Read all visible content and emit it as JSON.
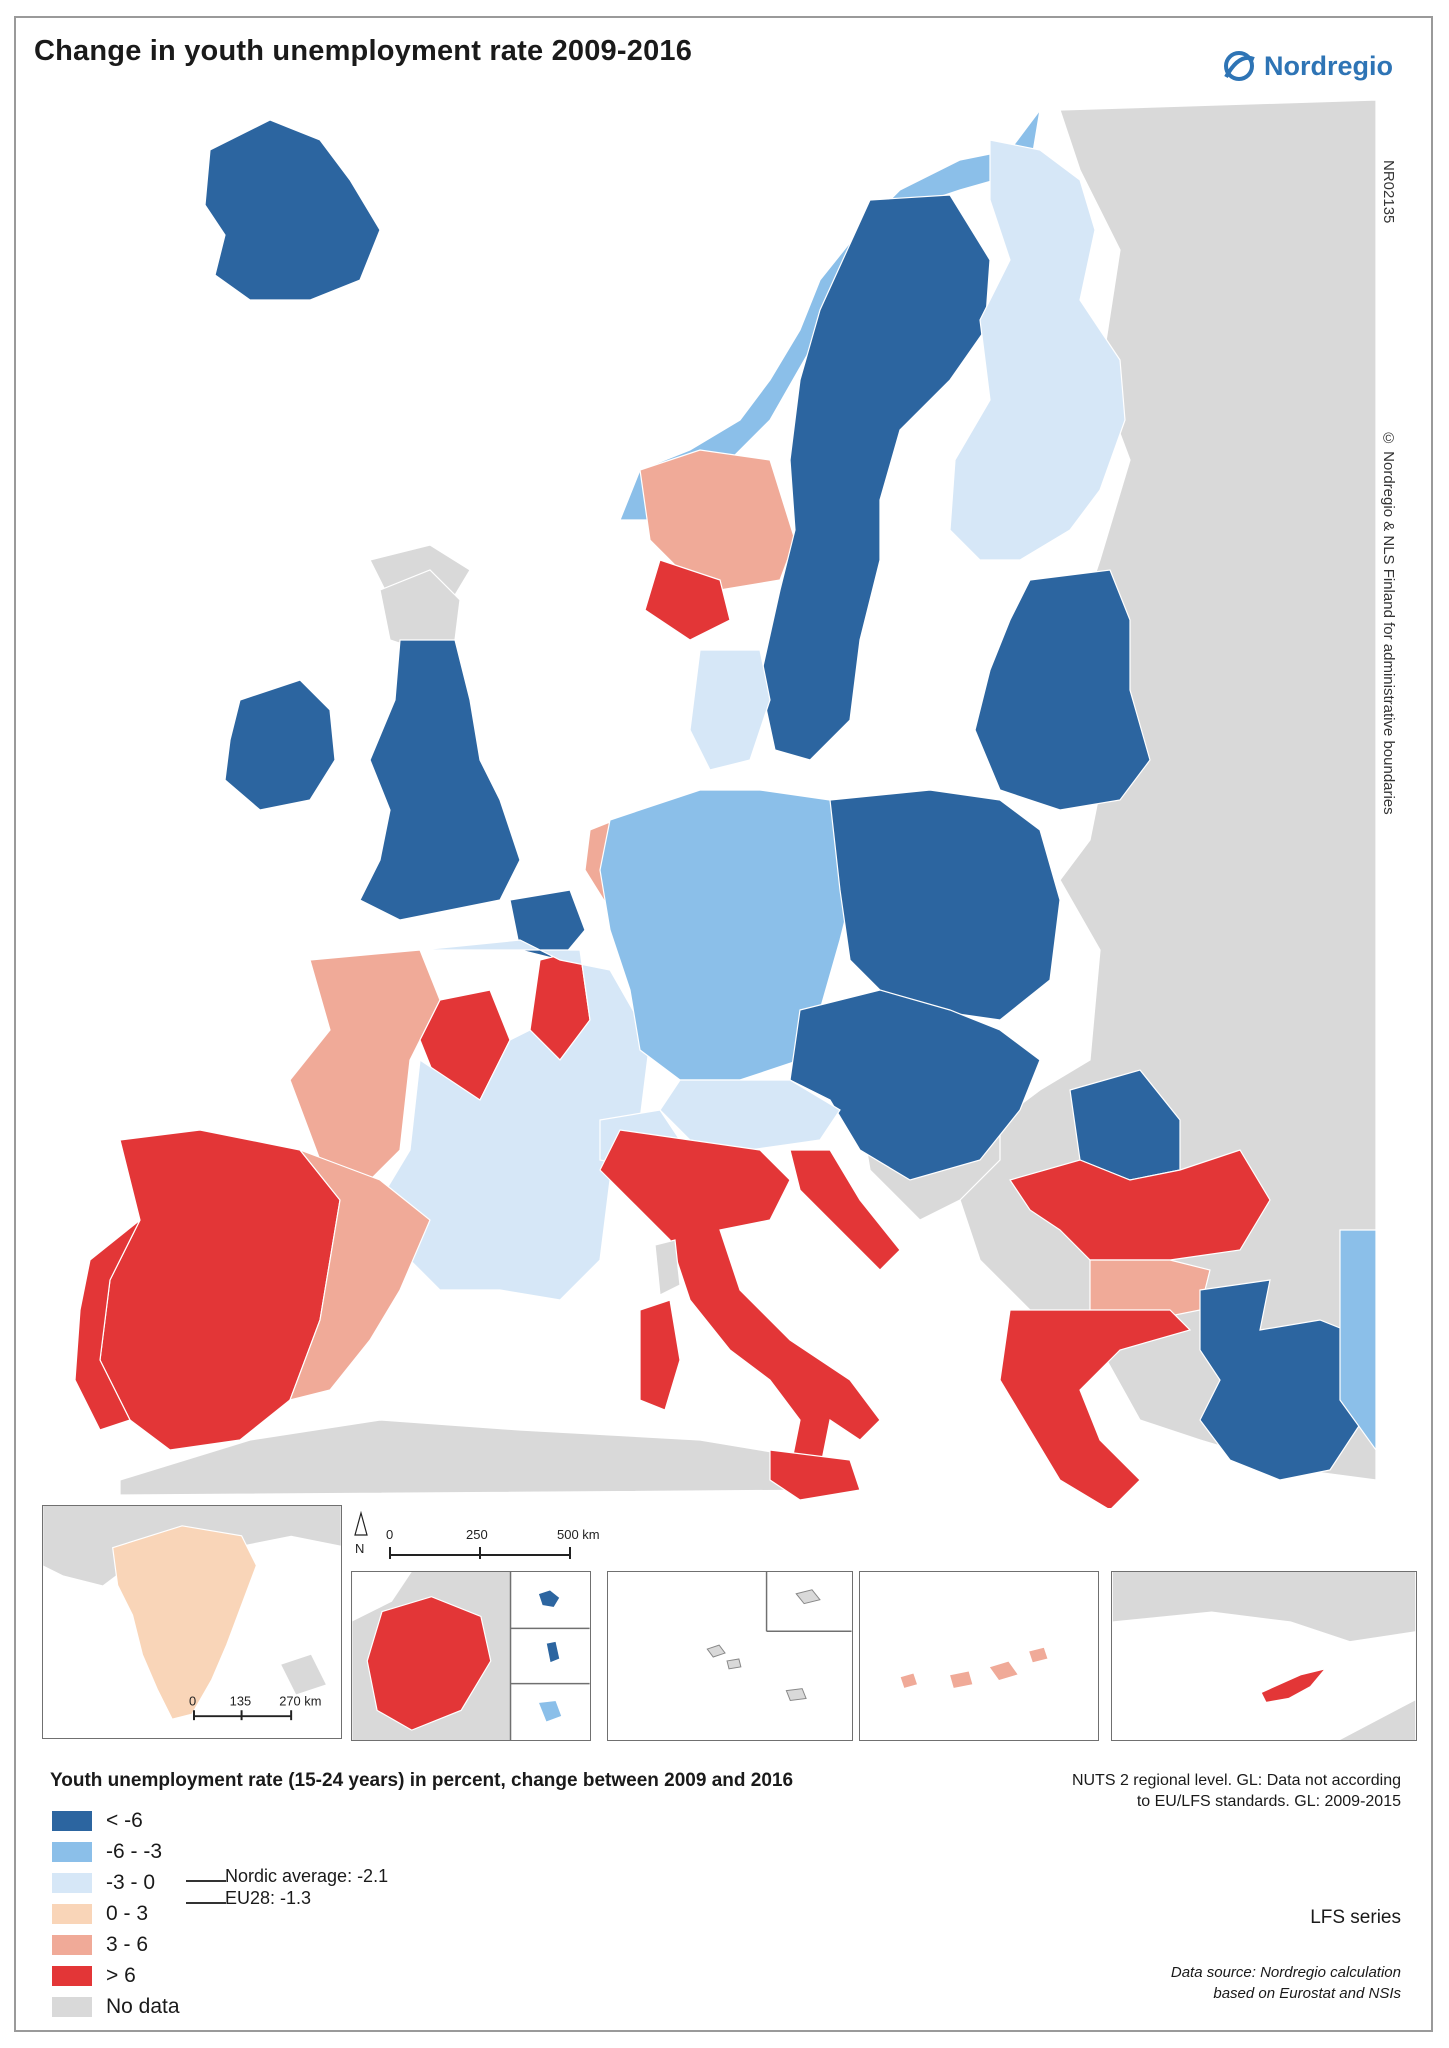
{
  "title": "Change in youth unemployment rate 2009-2016",
  "logo": {
    "name": "Nordregio",
    "icon": "nordregio-logo-icon",
    "color": "#2e74b5"
  },
  "map_code": "NR02135",
  "copyright": "© Nordregio & NLS Finland for administrative boundaries",
  "legend": {
    "heading": "Youth unemployment rate (15-24 years) in percent, change between 2009 and 2016",
    "classes": [
      {
        "label": "< -6",
        "color": "#2c65a0"
      },
      {
        "label": "-6 - -3",
        "color": "#8bbfe9"
      },
      {
        "label": "-3 - 0",
        "color": "#d6e7f7"
      },
      {
        "label": "0 - 3",
        "color": "#f9d5b8"
      },
      {
        "label": "3 - 6",
        "color": "#f0aa98"
      },
      {
        "label": "> 6",
        "color": "#e33637"
      },
      {
        "label": "No data",
        "color": "#d9d9d9"
      }
    ],
    "averages": [
      {
        "label": "Nordic average: -2.1",
        "class_index": 2
      },
      {
        "label": "EU28: -1.3",
        "class_index": 2
      }
    ]
  },
  "notes": {
    "nuts": [
      "NUTS 2 regional level. GL: Data not according",
      "to EU/LFS standards. GL: 2009-2015"
    ],
    "series": "LFS series",
    "source": [
      "Data source: Nordregio calculation",
      "based on Eurostat and NSIs"
    ]
  },
  "scale_main": {
    "ticks": [
      "0",
      "250",
      "500 km"
    ]
  },
  "scale_greenland": {
    "ticks": [
      "0",
      "135",
      "270 km"
    ]
  },
  "north_arrow": "N",
  "regions": {
    "iceland": 0,
    "ireland": 0,
    "norway_north": 1,
    "norway_south": 4,
    "norway_southmost": 5,
    "sweden": 0,
    "finland": 2,
    "estonia_latvia_lithuania": 0,
    "scotland_north": 6,
    "uk": 0,
    "denmark": 2,
    "netherlands": 4,
    "belgium": 0,
    "france_west": 4,
    "france_center": 5,
    "france_rest": 2,
    "germany": 1,
    "poland": 0,
    "czechia_slovakia_hungary": 0,
    "austria": 2,
    "switzerland": 2,
    "spain": 5,
    "catalonia_east_spain": 4,
    "portugal": 5,
    "italy": 5,
    "sardinia": 5,
    "corsica": 6,
    "croatia": 5,
    "romania": 5,
    "romania_north": 0,
    "bulgaria": 4,
    "greece": 5,
    "turkey": 0,
    "turkey_east": 1,
    "cyprus": 5,
    "greenland": 3,
    "french_guiana": 5,
    "canaries": 4,
    "outside": 6
  }
}
